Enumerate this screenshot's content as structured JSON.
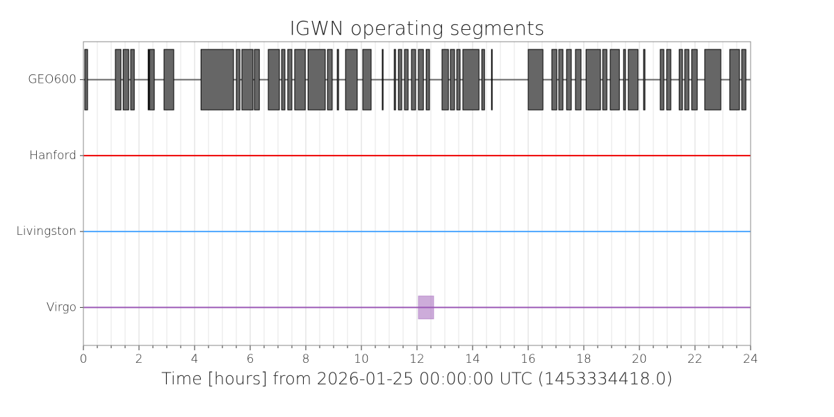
{
  "chart_data": {
    "type": "segments",
    "title": "IGWN operating segments",
    "xlabel": "Time [hours] from 2026-01-25 00:00:00 UTC (1453334418.0)",
    "xlim": [
      0,
      24
    ],
    "xticks": [
      0,
      2,
      4,
      6,
      8,
      10,
      12,
      14,
      16,
      18,
      20,
      22,
      24
    ],
    "xminorticks": [
      0.5,
      1,
      1.5,
      2.5,
      3,
      3.5,
      4.5,
      5,
      5.5,
      6.5,
      7,
      7.5,
      8.5,
      9,
      9.5,
      10.5,
      11,
      11.5,
      12.5,
      13,
      13.5,
      14.5,
      15,
      15.5,
      16.5,
      17,
      17.5,
      18.5,
      19,
      19.5,
      20.5,
      21,
      21.5,
      22.5,
      23,
      23.5
    ],
    "grid": true,
    "series": [
      {
        "name": "GEO600",
        "color": "#666666",
        "known": [
          [
            0,
            24
          ]
        ],
        "active": [
          [
            0.05,
            0.15
          ],
          [
            1.15,
            1.35
          ],
          [
            1.43,
            1.63
          ],
          [
            1.7,
            1.83
          ],
          [
            2.33,
            2.35
          ],
          [
            2.38,
            2.55
          ],
          [
            2.9,
            3.25
          ],
          [
            4.23,
            5.4
          ],
          [
            5.5,
            5.63
          ],
          [
            5.7,
            6.1
          ],
          [
            6.15,
            6.33
          ],
          [
            6.65,
            7.05
          ],
          [
            7.13,
            7.25
          ],
          [
            7.35,
            7.5
          ],
          [
            7.6,
            7.98
          ],
          [
            8.08,
            8.7
          ],
          [
            8.78,
            8.95
          ],
          [
            9.13,
            9.18
          ],
          [
            9.43,
            9.85
          ],
          [
            10.05,
            10.35
          ],
          [
            10.75,
            10.78
          ],
          [
            11.18,
            11.23
          ],
          [
            11.33,
            11.45
          ],
          [
            11.55,
            11.68
          ],
          [
            11.8,
            11.95
          ],
          [
            12.05,
            12.23
          ],
          [
            12.33,
            12.45
          ],
          [
            12.9,
            13.13
          ],
          [
            13.2,
            13.35
          ],
          [
            13.43,
            13.55
          ],
          [
            13.65,
            14.23
          ],
          [
            14.33,
            14.43
          ],
          [
            14.68,
            14.7
          ],
          [
            16,
            16.53
          ],
          [
            16.85,
            17.03
          ],
          [
            17.1,
            17.25
          ],
          [
            17.38,
            17.55
          ],
          [
            17.7,
            17.9
          ],
          [
            18.08,
            18.6
          ],
          [
            18.68,
            18.83
          ],
          [
            18.95,
            19.28
          ],
          [
            19.43,
            19.5
          ],
          [
            19.6,
            19.95
          ],
          [
            20.15,
            20.2
          ],
          [
            20.75,
            20.88
          ],
          [
            20.98,
            21.13
          ],
          [
            21.43,
            21.55
          ],
          [
            21.63,
            21.78
          ],
          [
            21.88,
            22.08
          ],
          [
            22.35,
            22.93
          ],
          [
            23.25,
            23.6
          ],
          [
            23.68,
            23.83
          ]
        ]
      },
      {
        "name": "Hanford",
        "color": "#ee0000",
        "known": [
          [
            0,
            24
          ]
        ],
        "active": []
      },
      {
        "name": "Livingston",
        "color": "#4ba6ff",
        "known": [
          [
            0,
            24
          ]
        ],
        "active": []
      },
      {
        "name": "Virgo",
        "color": "#9b59b6",
        "known": [
          [
            0,
            24
          ]
        ],
        "active": [
          [
            12.05,
            12.6
          ]
        ],
        "opacity": 0.5
      }
    ]
  }
}
